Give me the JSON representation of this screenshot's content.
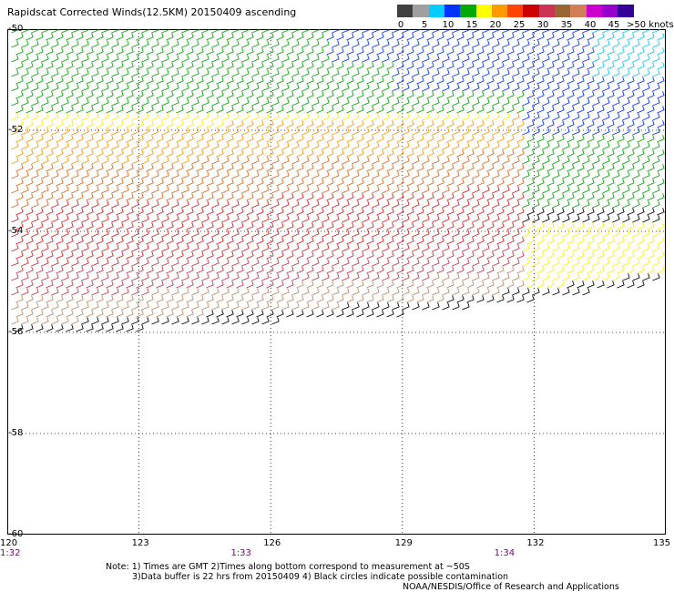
{
  "title": "Rapidscat Corrected Winds(12.5KM) 20150409 ascending",
  "legend": {
    "colors": [
      "#404040",
      "#a0a0a0",
      "#00ccff",
      "#0033ff",
      "#00aa00",
      "#ffff00",
      "#ff9900",
      "#ff4400",
      "#cc0000",
      "#cc3355",
      "#996633",
      "#d27f58",
      "#cc00cc",
      "#9900cc",
      "#330099"
    ],
    "labels": [
      "0",
      "5",
      "10",
      "15",
      "20",
      "25",
      "30",
      "35",
      "40",
      "45"
    ],
    "units": ">50 knots"
  },
  "axes": {
    "lon_ticks": [
      "120",
      "123",
      "126",
      "129",
      "132",
      "135"
    ],
    "lat_ticks": [
      "-50",
      "-52",
      "-54",
      "-56",
      "-58",
      "-60"
    ],
    "lon_range": [
      120,
      135
    ],
    "lat_range": [
      -50,
      -60
    ],
    "grid": true
  },
  "times": [
    {
      "label": "1:32",
      "lon": 120
    },
    {
      "label": "1:33",
      "lon": 125.3
    },
    {
      "label": "1:34",
      "lon": 131.3
    }
  ],
  "notes": [
    "Note: 1) Times are GMT 2)Times along bottom correspond to measurement at ~50S",
    "3)Data buffer is 22 hrs from 20150409 4) Black circles indicate possible contamination",
    "NOAA/NESDIS/Office of Research and Applications"
  ],
  "colors": {
    "black": "#000000",
    "green": "#00aa00",
    "blue": "#0033ff",
    "cyan": "#00ccff",
    "yellow": "#ffee00",
    "orange": "#ff9900",
    "darkorange": "#e06a1a",
    "red": "#dd2222",
    "crimson": "#cc3344",
    "tan": "#c08860",
    "magenta": "#cc00cc"
  }
}
